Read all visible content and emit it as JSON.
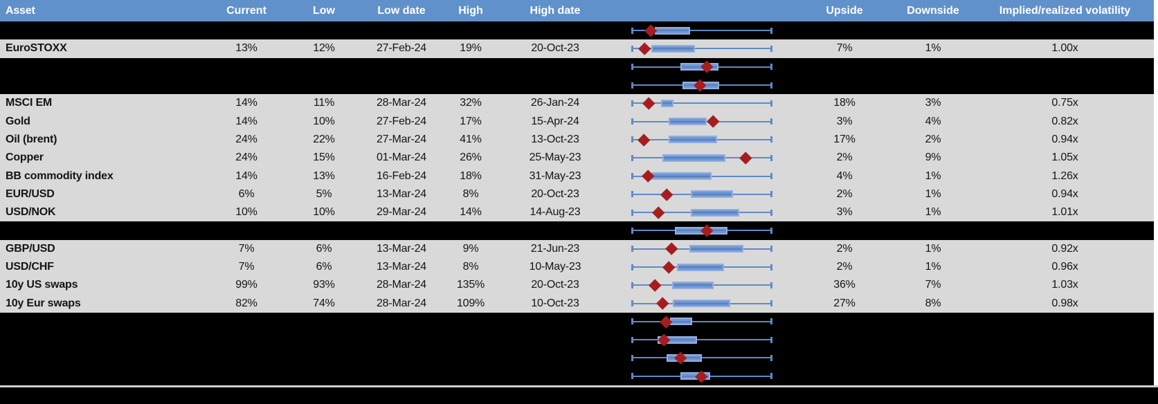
{
  "columns": [
    {
      "key": "asset",
      "label": "Asset"
    },
    {
      "key": "current",
      "label": "Current"
    },
    {
      "key": "low",
      "label": "Low"
    },
    {
      "key": "low_date",
      "label": "Low date"
    },
    {
      "key": "high",
      "label": "High"
    },
    {
      "key": "high_date",
      "label": "High date"
    },
    {
      "key": "chart",
      "label": ""
    },
    {
      "key": "upside",
      "label": "Upside"
    },
    {
      "key": "downside",
      "label": "Downside"
    },
    {
      "key": "ratio",
      "label": "Implied/realized volatility"
    }
  ],
  "colors": {
    "header_bg": "#6191cb",
    "header_text": "#ffffff",
    "row_gray": "#d9d9d9",
    "row_black": "#000000",
    "box_fill": "#6d98d5",
    "box_border": "#96acdd",
    "whisker": "#5e8ac8",
    "diamond": "#a61d20",
    "separator": "#cfcfcf"
  },
  "chart_data": {
    "type": "boxplot",
    "orientation": "horizontal",
    "note": "one normalized box-whisker per table row; whisker always spans 0-1 (Low to High), box and diamond positions normalized within that span",
    "whisker_range": [
      0,
      1
    ]
  },
  "rows": [
    {
      "kind": "chart",
      "plot": {
        "box": [
          0.165,
          0.415
        ],
        "diamond": 0.133
      }
    },
    {
      "kind": "data",
      "asset": "EuroSTOXX",
      "current": "13%",
      "low": "12%",
      "low_date": "27-Feb-24",
      "high": "19%",
      "high_date": "20-Oct-23",
      "upside": "7%",
      "downside": "1%",
      "ratio": "1.00x",
      "plot": {
        "box": [
          0.138,
          0.45
        ],
        "diamond": 0.092
      }
    },
    {
      "kind": "chart",
      "plot": {
        "box": [
          0.346,
          0.617
        ],
        "diamond": 0.538
      }
    },
    {
      "kind": "chart",
      "plot": {
        "box": [
          0.363,
          0.626
        ],
        "diamond": 0.486
      }
    },
    {
      "kind": "data",
      "asset": "MSCI EM",
      "current": "14%",
      "low": "11%",
      "low_date": "28-Mar-24",
      "high": "32%",
      "high_date": "26-Jan-24",
      "upside": "18%",
      "downside": "3%",
      "ratio": "0.75x",
      "plot": {
        "box": [
          0.207,
          0.295
        ],
        "diamond": 0.118
      }
    },
    {
      "kind": "data",
      "asset": "Gold",
      "current": "14%",
      "low": "10%",
      "low_date": "27-Feb-24",
      "high": "17%",
      "high_date": "15-Apr-24",
      "upside": "3%",
      "downside": "4%",
      "ratio": "0.82x",
      "plot": {
        "box": [
          0.261,
          0.537
        ],
        "diamond": 0.58
      }
    },
    {
      "kind": "data",
      "asset": "Oil (brent)",
      "current": "24%",
      "low": "22%",
      "low_date": "27-Mar-24",
      "high": "41%",
      "high_date": "13-Oct-23",
      "upside": "17%",
      "downside": "2%",
      "ratio": "0.94x",
      "plot": {
        "box": [
          0.264,
          0.609
        ],
        "diamond": 0.087
      }
    },
    {
      "kind": "data",
      "asset": "Copper",
      "current": "24%",
      "low": "15%",
      "low_date": "01-Mar-24",
      "high": "26%",
      "high_date": "25-May-23",
      "upside": "2%",
      "downside": "9%",
      "ratio": "1.05x",
      "plot": {
        "box": [
          0.218,
          0.667
        ],
        "diamond": 0.814
      }
    },
    {
      "kind": "data",
      "asset": "BB commodity index",
      "current": "14%",
      "low": "13%",
      "low_date": "16-Feb-24",
      "high": "18%",
      "high_date": "31-May-23",
      "upside": "4%",
      "downside": "1%",
      "ratio": "1.26x",
      "plot": {
        "box": [
          0.141,
          0.568
        ],
        "diamond": 0.117
      }
    },
    {
      "kind": "data",
      "asset": "EUR/USD",
      "current": "6%",
      "low": "5%",
      "low_date": "13-Mar-24",
      "high": "8%",
      "high_date": "20-Oct-23",
      "upside": "2%",
      "downside": "1%",
      "ratio": "0.94x",
      "plot": {
        "box": [
          0.42,
          0.721
        ],
        "diamond": 0.248
      }
    },
    {
      "kind": "data",
      "asset": "USD/NOK",
      "current": "10%",
      "low": "10%",
      "low_date": "29-Mar-24",
      "high": "14%",
      "high_date": "14-Aug-23",
      "upside": "3%",
      "downside": "1%",
      "ratio": "1.01x",
      "plot": {
        "box": [
          0.42,
          0.765
        ],
        "diamond": 0.191
      }
    },
    {
      "kind": "chart",
      "plot": {
        "box": [
          0.305,
          0.683
        ],
        "diamond": 0.535
      }
    },
    {
      "kind": "data",
      "asset": "GBP/USD",
      "current": "7%",
      "low": "6%",
      "low_date": "13-Mar-24",
      "high": "9%",
      "high_date": "21-Jun-23",
      "upside": "2%",
      "downside": "1%",
      "ratio": "0.92x",
      "plot": {
        "box": [
          0.412,
          0.798
        ],
        "diamond": 0.281
      }
    },
    {
      "kind": "data",
      "asset": "USD/CHF",
      "current": "7%",
      "low": "6%",
      "low_date": "13-Mar-24",
      "high": "8%",
      "high_date": "10-May-23",
      "upside": "2%",
      "downside": "1%",
      "ratio": "0.96x",
      "plot": {
        "box": [
          0.322,
          0.659
        ],
        "diamond": 0.264
      }
    },
    {
      "kind": "data",
      "asset": "10y US swaps",
      "current": "99%",
      "low": "93%",
      "low_date": "28-Mar-24",
      "high": "135%",
      "high_date": "20-Oct-23",
      "upside": "36%",
      "downside": "7%",
      "ratio": "1.03x",
      "plot": {
        "box": [
          0.289,
          0.585
        ],
        "diamond": 0.163
      }
    },
    {
      "kind": "data",
      "asset": "10y Eur swaps",
      "current": "82%",
      "low": "74%",
      "low_date": "28-Mar-24",
      "high": "109%",
      "high_date": "10-Oct-23",
      "upside": "27%",
      "downside": "8%",
      "ratio": "0.98x",
      "plot": {
        "box": [
          0.294,
          0.704
        ],
        "diamond": 0.218
      }
    },
    {
      "kind": "chart",
      "plot": {
        "box": [
          0.272,
          0.433
        ],
        "diamond": 0.245
      }
    },
    {
      "kind": "chart",
      "plot": {
        "box": [
          0.182,
          0.466
        ],
        "diamond": 0.228
      }
    },
    {
      "kind": "chart",
      "plot": {
        "box": [
          0.248,
          0.499
        ],
        "diamond": 0.346
      }
    },
    {
      "kind": "chart",
      "plot": {
        "box": [
          0.346,
          0.557
        ],
        "diamond": 0.494
      }
    }
  ]
}
